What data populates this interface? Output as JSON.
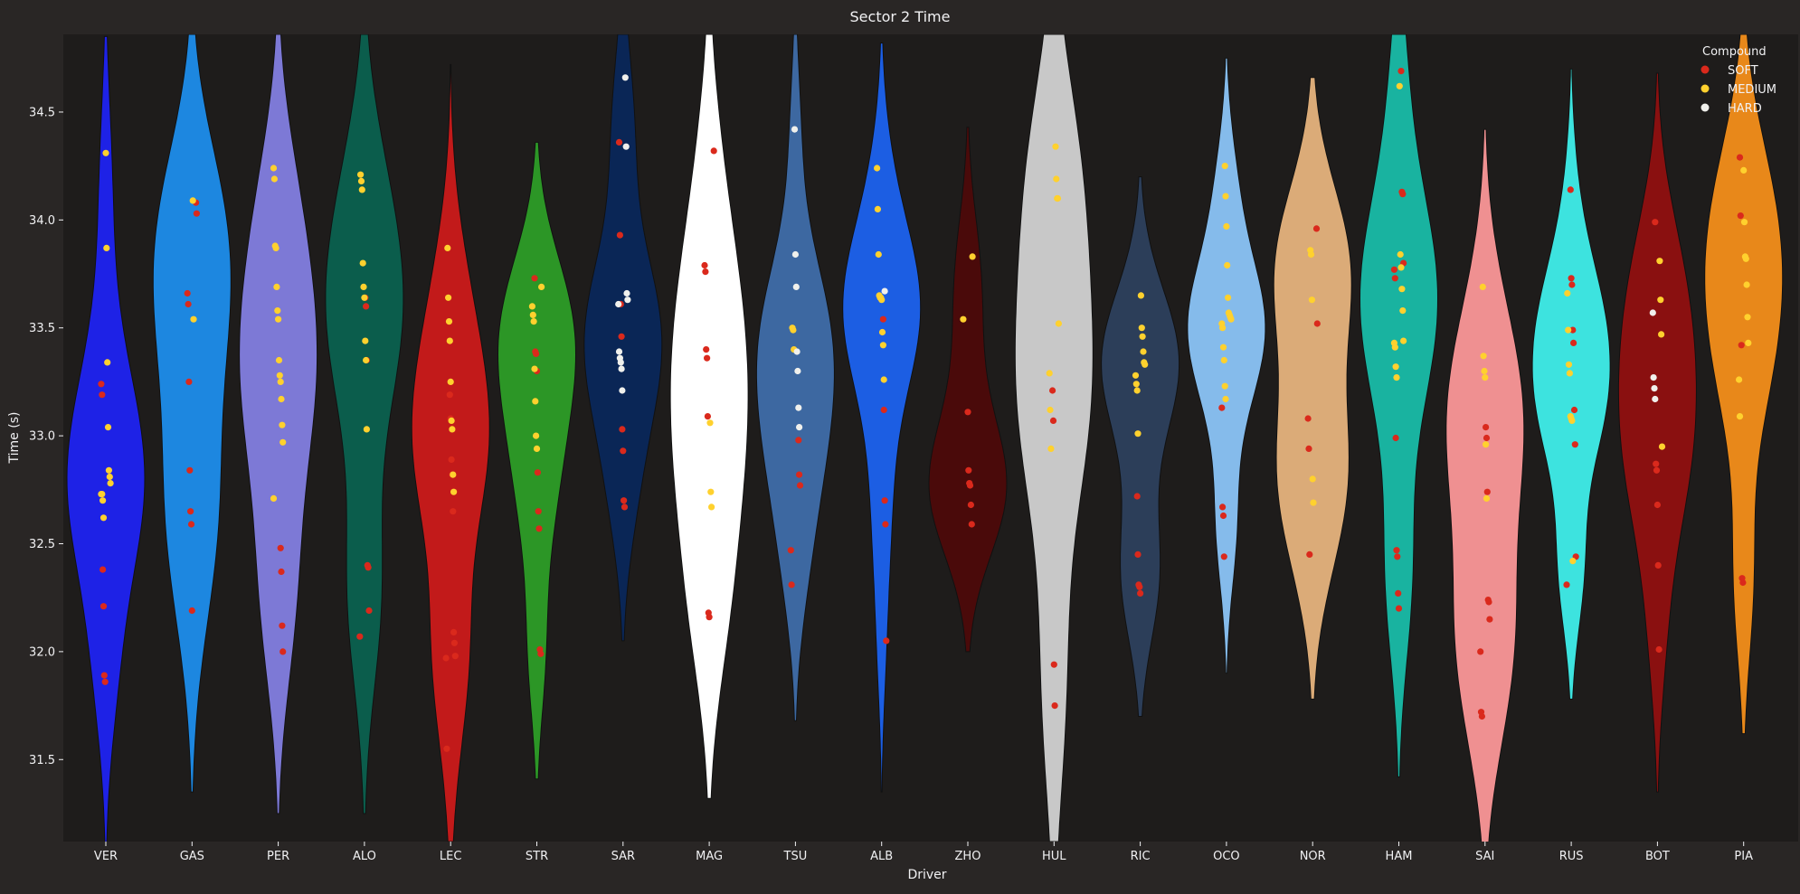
{
  "chart_data": {
    "type": "violin",
    "title": "Sector 2 Time",
    "xlabel": "Driver",
    "ylabel": "Time (s)",
    "ylim": [
      31.12,
      34.86
    ],
    "yticks": [
      31.5,
      32.0,
      32.5,
      33.0,
      33.5,
      34.0,
      34.5
    ],
    "ytick_labels": [
      "31.5",
      "32.0",
      "32.5",
      "33.0",
      "33.5",
      "34.0",
      "34.5"
    ],
    "grid": false,
    "legend": {
      "title": "Compound",
      "position": "top-right",
      "entries": [
        {
          "label": "SOFT",
          "color": "#da291c"
        },
        {
          "label": "MEDIUM",
          "color": "#ffd12e"
        },
        {
          "label": "HARD",
          "color": "#f0f0ec"
        }
      ]
    },
    "colors": {
      "background": "#292625",
      "axes_background": "#1e1c1b",
      "text": "#f1f1f3"
    },
    "drivers": [
      {
        "name": "VER",
        "color": "#1e22e6",
        "min": 31.1,
        "max": 34.85,
        "soft": [
          33.24,
          33.19,
          32.38,
          32.21,
          31.89,
          31.86
        ],
        "medium": [
          34.31,
          33.87,
          33.34,
          33.04,
          32.84,
          32.81,
          32.78,
          32.73,
          32.73,
          32.7,
          32.62
        ],
        "hard": []
      },
      {
        "name": "GAS",
        "color": "#1d87e0",
        "min": 31.35,
        "max": 34.86,
        "soft": [
          34.08,
          34.03,
          33.66,
          33.61,
          33.25,
          32.84,
          32.65,
          32.59,
          32.19
        ],
        "medium": [
          34.09,
          33.54
        ],
        "hard": []
      },
      {
        "name": "PER",
        "color": "#7d79d6",
        "min": 31.25,
        "max": 34.86,
        "soft": [
          32.48,
          32.37,
          32.12,
          32.0
        ],
        "medium": [
          34.24,
          34.19,
          33.88,
          33.87,
          33.69,
          33.58,
          33.54,
          33.35,
          33.28,
          33.25,
          33.17,
          33.05,
          32.97,
          32.71
        ],
        "hard": []
      },
      {
        "name": "ALO",
        "color": "#0b5d4c",
        "min": 31.25,
        "max": 34.86,
        "soft": [
          33.64,
          33.6,
          33.35,
          32.4,
          32.39,
          32.19,
          32.07
        ],
        "medium": [
          34.21,
          34.18,
          34.14,
          33.8,
          33.69,
          33.64,
          33.44,
          33.35,
          33.03
        ],
        "hard": []
      },
      {
        "name": "LEC",
        "color": "#c21a1a",
        "min": 31.12,
        "max": 34.72,
        "soft": [
          33.19,
          33.08,
          32.89,
          32.82,
          32.65,
          32.09,
          32.04,
          31.98,
          31.97,
          31.55
        ],
        "medium": [
          33.87,
          33.64,
          33.53,
          33.44,
          33.25,
          33.07,
          33.03,
          32.82,
          32.74
        ],
        "hard": []
      },
      {
        "name": "STR",
        "color": "#2c9626",
        "min": 31.41,
        "max": 34.36,
        "soft": [
          33.73,
          33.39,
          33.38,
          33.3,
          32.83,
          32.65,
          32.57,
          32.01,
          31.99
        ],
        "medium": [
          33.69,
          33.6,
          33.56,
          33.53,
          33.31,
          33.16,
          33.0,
          32.94
        ],
        "hard": []
      },
      {
        "name": "SAR",
        "color": "#0a2656",
        "min": 32.05,
        "max": 34.86,
        "soft": [
          34.36,
          33.93,
          33.61,
          33.46,
          33.03,
          32.93,
          32.7,
          32.67
        ],
        "medium": [],
        "hard": [
          34.66,
          34.34,
          33.66,
          33.63,
          33.61,
          33.39,
          33.36,
          33.34,
          33.31,
          33.21
        ]
      },
      {
        "name": "MAG",
        "color": "#ffffff",
        "min": 31.32,
        "max": 34.86,
        "soft": [
          34.32,
          33.79,
          33.76,
          33.4,
          33.36,
          33.09,
          32.18,
          32.16
        ],
        "medium": [
          33.06,
          32.74,
          32.67
        ],
        "hard": []
      },
      {
        "name": "TSU",
        "color": "#3d68a1",
        "min": 31.68,
        "max": 34.86,
        "soft": [
          32.98,
          32.82,
          32.77,
          32.47,
          32.31
        ],
        "medium": [
          33.5,
          33.49,
          33.4
        ],
        "hard": [
          34.42,
          33.84,
          33.69,
          33.39,
          33.3,
          33.13,
          33.04
        ]
      },
      {
        "name": "ALB",
        "color": "#1c5ee3",
        "min": 31.35,
        "max": 34.82,
        "soft": [
          33.54,
          33.12,
          32.7,
          32.59,
          32.05
        ],
        "medium": [
          34.24,
          34.05,
          33.84,
          33.65,
          33.64,
          33.64,
          33.63,
          33.48,
          33.42,
          33.26
        ],
        "hard": [
          33.67
        ]
      },
      {
        "name": "ZHO",
        "color": "#4a0a0a",
        "min": 32.0,
        "max": 34.43,
        "soft": [
          33.11,
          32.84,
          32.78,
          32.77,
          32.68,
          32.59
        ],
        "medium": [
          33.83,
          33.54
        ],
        "hard": []
      },
      {
        "name": "HUL",
        "color": "#c8c8c8",
        "min": 31.12,
        "max": 34.86,
        "soft": [
          33.21,
          33.07,
          31.94,
          31.75
        ],
        "medium": [
          34.34,
          34.19,
          34.1,
          34.1,
          33.52,
          33.29,
          33.12,
          32.94
        ],
        "hard": []
      },
      {
        "name": "RIC",
        "color": "#2c3e59",
        "min": 31.7,
        "max": 34.2,
        "soft": [
          32.72,
          32.45,
          32.31,
          32.3,
          32.27
        ],
        "medium": [
          33.65,
          33.5,
          33.46,
          33.39,
          33.34,
          33.33,
          33.28,
          33.24,
          33.21,
          33.01
        ],
        "hard": []
      },
      {
        "name": "OCO",
        "color": "#85bbeb",
        "min": 31.9,
        "max": 34.75,
        "soft": [
          33.13,
          32.67,
          32.63,
          32.44
        ],
        "medium": [
          34.25,
          34.11,
          33.97,
          33.79,
          33.64,
          33.57,
          33.56,
          33.55,
          33.54,
          33.52,
          33.5,
          33.41,
          33.35,
          33.23,
          33.17
        ],
        "hard": []
      },
      {
        "name": "NOR",
        "color": "#dbab78",
        "min": 31.78,
        "max": 34.66,
        "soft": [
          33.96,
          33.52,
          33.08,
          32.94,
          32.45
        ],
        "medium": [
          33.86,
          33.84,
          33.63,
          32.8,
          32.69
        ],
        "hard": []
      },
      {
        "name": "HAM",
        "color": "#19b3a0",
        "min": 31.42,
        "max": 34.86,
        "soft": [
          34.69,
          34.13,
          34.12,
          33.8,
          33.77,
          33.73,
          32.99,
          32.47,
          32.44,
          32.27,
          32.2
        ],
        "medium": [
          34.62,
          33.84,
          33.78,
          33.68,
          33.58,
          33.44,
          33.43,
          33.41,
          33.32,
          33.27
        ],
        "hard": []
      },
      {
        "name": "SAI",
        "color": "#ef9091",
        "min": 31.08,
        "max": 34.42,
        "soft": [
          33.04,
          32.99,
          32.74,
          32.24,
          32.23,
          32.15,
          32.0,
          31.72,
          31.7
        ],
        "medium": [
          33.69,
          33.37,
          33.3,
          33.27,
          32.96,
          32.71
        ],
        "hard": []
      },
      {
        "name": "RUS",
        "color": "#3de3df",
        "min": 31.78,
        "max": 34.7,
        "soft": [
          34.14,
          33.73,
          33.7,
          33.49,
          33.43,
          33.12,
          32.96,
          32.44,
          32.31
        ],
        "medium": [
          33.66,
          33.49,
          33.33,
          33.29,
          33.09,
          33.08,
          33.07,
          32.42
        ],
        "hard": []
      },
      {
        "name": "BOT",
        "color": "#8a1010",
        "min": 31.35,
        "max": 34.68,
        "soft": [
          33.99,
          32.87,
          32.84,
          32.68,
          32.4,
          32.01
        ],
        "medium": [
          33.81,
          33.63,
          33.47,
          32.95
        ],
        "hard": [
          33.57,
          33.27,
          33.22,
          33.17
        ]
      },
      {
        "name": "PIA",
        "color": "#e8881a",
        "min": 31.62,
        "max": 34.86,
        "soft": [
          34.29,
          34.02,
          33.42,
          32.34,
          32.32
        ],
        "medium": [
          34.23,
          33.99,
          33.83,
          33.82,
          33.7,
          33.55,
          33.43,
          33.26,
          33.09
        ],
        "hard": []
      }
    ]
  }
}
